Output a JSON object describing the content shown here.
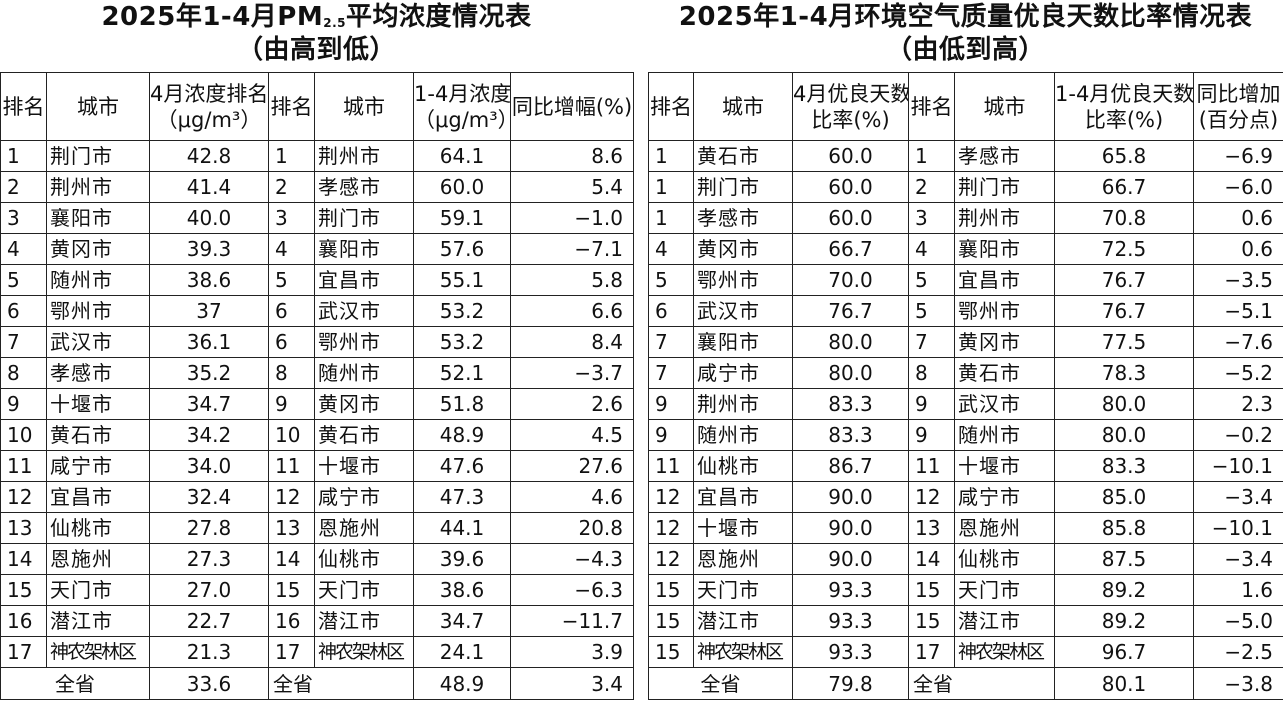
{
  "left": {
    "title_main": "2025年1-4月PM",
    "title_sub": "2.5",
    "title_tail": "平均浓度情况表",
    "title_order": "（由高到低）",
    "headers": {
      "rank_a": "排名",
      "city_a": "城市",
      "val_a_line1": "4月浓度排名",
      "val_a_line2": "（μg/m³）",
      "rank_b": "排名",
      "city_b": "城市",
      "val_b_line1": "1-4月浓度",
      "val_b_line2": "（μg/m³）",
      "change": "同比增幅(%)"
    },
    "rows": [
      {
        "rank_a": "1",
        "city_a": "荆门市",
        "val_a": "42.8",
        "rank_b": "1",
        "city_b": "荆州市",
        "val_b": "64.1",
        "change": "8.6"
      },
      {
        "rank_a": "2",
        "city_a": "荆州市",
        "val_a": "41.4",
        "rank_b": "2",
        "city_b": "孝感市",
        "val_b": "60.0",
        "change": "5.4"
      },
      {
        "rank_a": "3",
        "city_a": "襄阳市",
        "val_a": "40.0",
        "rank_b": "3",
        "city_b": "荆门市",
        "val_b": "59.1",
        "change": "−1.0"
      },
      {
        "rank_a": "4",
        "city_a": "黄冈市",
        "val_a": "39.3",
        "rank_b": "4",
        "city_b": "襄阳市",
        "val_b": "57.6",
        "change": "−7.1"
      },
      {
        "rank_a": "5",
        "city_a": "随州市",
        "val_a": "38.6",
        "rank_b": "5",
        "city_b": "宜昌市",
        "val_b": "55.1",
        "change": "5.8"
      },
      {
        "rank_a": "6",
        "city_a": "鄂州市",
        "val_a": "37",
        "rank_b": "6",
        "city_b": "武汉市",
        "val_b": "53.2",
        "change": "6.6"
      },
      {
        "rank_a": "7",
        "city_a": "武汉市",
        "val_a": "36.1",
        "rank_b": "6",
        "city_b": "鄂州市",
        "val_b": "53.2",
        "change": "8.4"
      },
      {
        "rank_a": "8",
        "city_a": "孝感市",
        "val_a": "35.2",
        "rank_b": "8",
        "city_b": "随州市",
        "val_b": "52.1",
        "change": "−3.7"
      },
      {
        "rank_a": "9",
        "city_a": "十堰市",
        "val_a": "34.7",
        "rank_b": "9",
        "city_b": "黄冈市",
        "val_b": "51.8",
        "change": "2.6"
      },
      {
        "rank_a": "10",
        "city_a": "黄石市",
        "val_a": "34.2",
        "rank_b": "10",
        "city_b": "黄石市",
        "val_b": "48.9",
        "change": "4.5"
      },
      {
        "rank_a": "11",
        "city_a": "咸宁市",
        "val_a": "34.0",
        "rank_b": "11",
        "city_b": "十堰市",
        "val_b": "47.6",
        "change": "27.6"
      },
      {
        "rank_a": "12",
        "city_a": "宜昌市",
        "val_a": "32.4",
        "rank_b": "12",
        "city_b": "咸宁市",
        "val_b": "47.3",
        "change": "4.6"
      },
      {
        "rank_a": "13",
        "city_a": "仙桃市",
        "val_a": "27.8",
        "rank_b": "13",
        "city_b": "恩施州",
        "val_b": "44.1",
        "change": "20.8"
      },
      {
        "rank_a": "14",
        "city_a": "恩施州",
        "val_a": "27.3",
        "rank_b": "14",
        "city_b": "仙桃市",
        "val_b": "39.6",
        "change": "−4.3"
      },
      {
        "rank_a": "15",
        "city_a": "天门市",
        "val_a": "27.0",
        "rank_b": "15",
        "city_b": "天门市",
        "val_b": "38.6",
        "change": "−6.3"
      },
      {
        "rank_a": "16",
        "city_a": "潜江市",
        "val_a": "22.7",
        "rank_b": "16",
        "city_b": "潜江市",
        "val_b": "34.7",
        "change": "−11.7"
      },
      {
        "rank_a": "17",
        "city_a": "神农架林区",
        "val_a": "21.3",
        "rank_b": "17",
        "city_b": "神农架林区",
        "val_b": "24.1",
        "change": "3.9"
      }
    ],
    "total": {
      "label_a": "全省",
      "val_a": "33.6",
      "label_b": "全省",
      "val_b": "48.9",
      "change": "3.4"
    }
  },
  "right": {
    "title_main": "2025年1-4月环境空气质量优良天数比率情况表",
    "title_order": "（由低到高）",
    "headers": {
      "rank_a": "排名",
      "city_a": "城市",
      "val_a_line1": "4月优良天数",
      "val_a_line2": "比率(%)",
      "rank_b": "排名",
      "city_b": "城市",
      "val_b_line1": "1-4月优良天数",
      "val_b_line2": "比率(%)",
      "change_line1": "同比增加",
      "change_line2": "(百分点)"
    },
    "rows": [
      {
        "rank_a": "1",
        "city_a": "黄石市",
        "val_a": "60.0",
        "rank_b": "1",
        "city_b": "孝感市",
        "val_b": "65.8",
        "change": "−6.9"
      },
      {
        "rank_a": "1",
        "city_a": "荆门市",
        "val_a": "60.0",
        "rank_b": "2",
        "city_b": "荆门市",
        "val_b": "66.7",
        "change": "−6.0"
      },
      {
        "rank_a": "1",
        "city_a": "孝感市",
        "val_a": "60.0",
        "rank_b": "3",
        "city_b": "荆州市",
        "val_b": "70.8",
        "change": "0.6"
      },
      {
        "rank_a": "4",
        "city_a": "黄冈市",
        "val_a": "66.7",
        "rank_b": "4",
        "city_b": "襄阳市",
        "val_b": "72.5",
        "change": "0.6"
      },
      {
        "rank_a": "5",
        "city_a": "鄂州市",
        "val_a": "70.0",
        "rank_b": "5",
        "city_b": "宜昌市",
        "val_b": "76.7",
        "change": "−3.5"
      },
      {
        "rank_a": "6",
        "city_a": "武汉市",
        "val_a": "76.7",
        "rank_b": "5",
        "city_b": "鄂州市",
        "val_b": "76.7",
        "change": "−5.1"
      },
      {
        "rank_a": "7",
        "city_a": "襄阳市",
        "val_a": "80.0",
        "rank_b": "7",
        "city_b": "黄冈市",
        "val_b": "77.5",
        "change": "−7.6"
      },
      {
        "rank_a": "7",
        "city_a": "咸宁市",
        "val_a": "80.0",
        "rank_b": "8",
        "city_b": "黄石市",
        "val_b": "78.3",
        "change": "−5.2"
      },
      {
        "rank_a": "9",
        "city_a": "荆州市",
        "val_a": "83.3",
        "rank_b": "9",
        "city_b": "武汉市",
        "val_b": "80.0",
        "change": "2.3"
      },
      {
        "rank_a": "9",
        "city_a": "随州市",
        "val_a": "83.3",
        "rank_b": "9",
        "city_b": "随州市",
        "val_b": "80.0",
        "change": "−0.2"
      },
      {
        "rank_a": "11",
        "city_a": "仙桃市",
        "val_a": "86.7",
        "rank_b": "11",
        "city_b": "十堰市",
        "val_b": "83.3",
        "change": "−10.1"
      },
      {
        "rank_a": "12",
        "city_a": "宜昌市",
        "val_a": "90.0",
        "rank_b": "12",
        "city_b": "咸宁市",
        "val_b": "85.0",
        "change": "−3.4"
      },
      {
        "rank_a": "12",
        "city_a": "十堰市",
        "val_a": "90.0",
        "rank_b": "13",
        "city_b": "恩施州",
        "val_b": "85.8",
        "change": "−10.1"
      },
      {
        "rank_a": "12",
        "city_a": "恩施州",
        "val_a": "90.0",
        "rank_b": "14",
        "city_b": "仙桃市",
        "val_b": "87.5",
        "change": "−3.4"
      },
      {
        "rank_a": "15",
        "city_a": "天门市",
        "val_a": "93.3",
        "rank_b": "15",
        "city_b": "天门市",
        "val_b": "89.2",
        "change": "1.6"
      },
      {
        "rank_a": "15",
        "city_a": "潜江市",
        "val_a": "93.3",
        "rank_b": "15",
        "city_b": "潜江市",
        "val_b": "89.2",
        "change": "−5.0"
      },
      {
        "rank_a": "15",
        "city_a": "神农架林区",
        "val_a": "93.3",
        "rank_b": "17",
        "city_b": "神农架林区",
        "val_b": "96.7",
        "change": "−2.5"
      }
    ],
    "total": {
      "label_a": "全省",
      "val_a": "79.8",
      "label_b": "全省",
      "val_b": "80.1",
      "change": "−3.8"
    }
  }
}
